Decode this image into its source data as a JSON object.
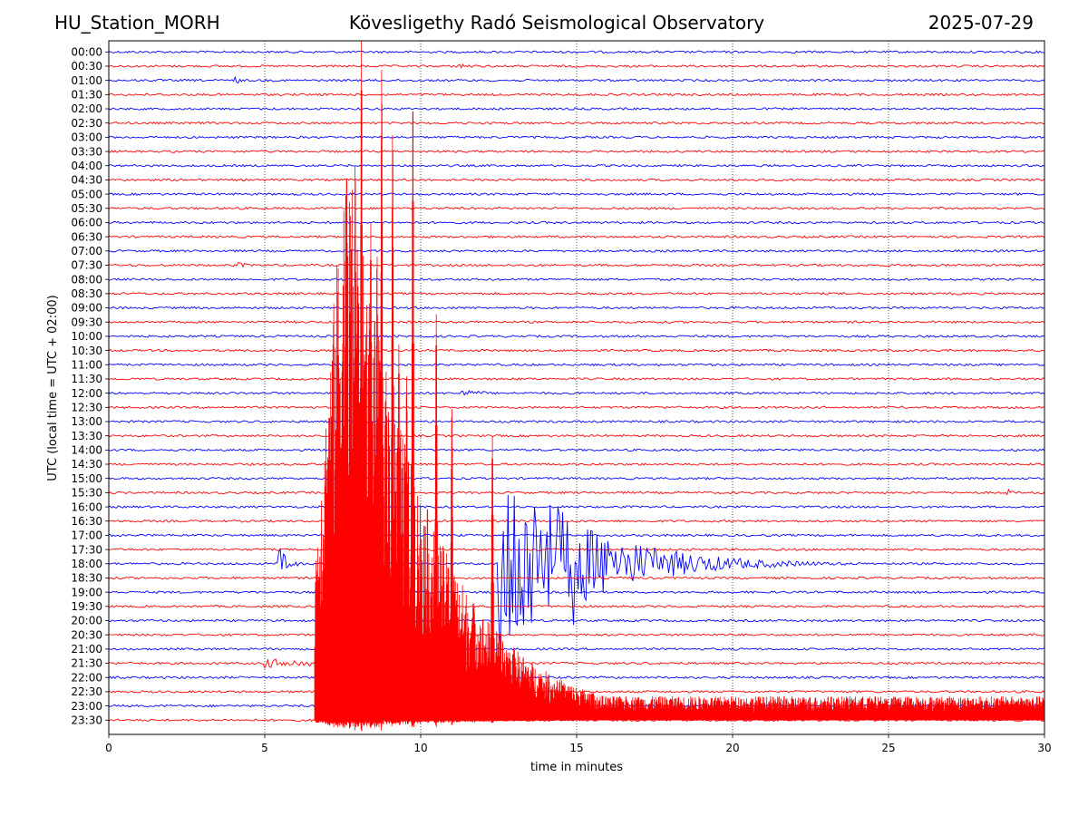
{
  "header": {
    "station": "HU_Station_MORH",
    "observatory": "Kövesligethy Radó Seismological Observatory",
    "date": "2025-07-29"
  },
  "chart_data": {
    "type": "line",
    "xlabel": "time in minutes",
    "ylabel": "UTC (local time = UTC + 02:00)",
    "xlim": [
      0,
      30
    ],
    "x_ticks": [
      0,
      5,
      10,
      15,
      20,
      25,
      30
    ],
    "vertical_gridlines_dotted": [
      5,
      10,
      15,
      20,
      25
    ],
    "row_colors_alternate": [
      "#0000ff",
      "#ff0000"
    ],
    "rows": [
      "00:00",
      "00:30",
      "01:00",
      "01:30",
      "02:00",
      "02:30",
      "03:00",
      "03:30",
      "04:00",
      "04:30",
      "05:00",
      "05:30",
      "06:00",
      "06:30",
      "07:00",
      "07:30",
      "08:00",
      "08:30",
      "09:00",
      "09:30",
      "10:00",
      "10:30",
      "11:00",
      "11:30",
      "12:00",
      "12:30",
      "13:00",
      "13:30",
      "14:00",
      "14:30",
      "15:00",
      "15:30",
      "16:00",
      "16:30",
      "17:00",
      "17:30",
      "18:00",
      "18:30",
      "19:00",
      "19:30",
      "20:00",
      "20:30",
      "21:00",
      "21:30",
      "22:00",
      "22:30",
      "23:00",
      "23:30"
    ],
    "events": [
      {
        "row": "00:30",
        "start_min": 11.2,
        "end_min": 12.0,
        "peak_rows": 0.3,
        "decay_min": 0.4
      },
      {
        "row": "01:00",
        "start_min": 4.0,
        "end_min": 4.6,
        "peak_rows": 0.3,
        "decay_min": 0.3
      },
      {
        "row": "07:30",
        "start_min": 4.1,
        "end_min": 4.8,
        "peak_rows": 0.25,
        "decay_min": 0.4
      },
      {
        "row": "12:00",
        "start_min": 11.3,
        "end_min": 14.0,
        "peak_rows": 0.25,
        "decay_min": 1.0
      },
      {
        "row": "15:30",
        "start_min": 28.8,
        "end_min": 29.2,
        "peak_rows": 0.3,
        "decay_min": 0.2
      },
      {
        "row": "18:00",
        "start_min": 5.4,
        "end_min": 6.8,
        "peak_rows": 1.4,
        "decay_min": 0.3
      },
      {
        "row": "18:00",
        "start_min": 12.5,
        "end_min": 24.5,
        "peak_rows": 8.5,
        "decay_min": 2.5
      },
      {
        "row": "18:00",
        "start_min": 14.85,
        "end_min": 15.4,
        "peak_rows": 5.5,
        "decay_min": 0.25
      },
      {
        "row": "21:30",
        "start_min": 4.95,
        "end_min": 6.6,
        "peak_rows": 0.35,
        "decay_min": 3.0
      }
    ],
    "large_event": {
      "row": "23:30",
      "onset_min": 6.6,
      "end_min": 30,
      "max_height_rows": 48,
      "spike_minutes": [
        8.1,
        8.75,
        9.75,
        9.1,
        7.9,
        7.6,
        8.4,
        8.6,
        7.35,
        10.5,
        9.3,
        9.55,
        11.0,
        12.3
      ]
    }
  }
}
